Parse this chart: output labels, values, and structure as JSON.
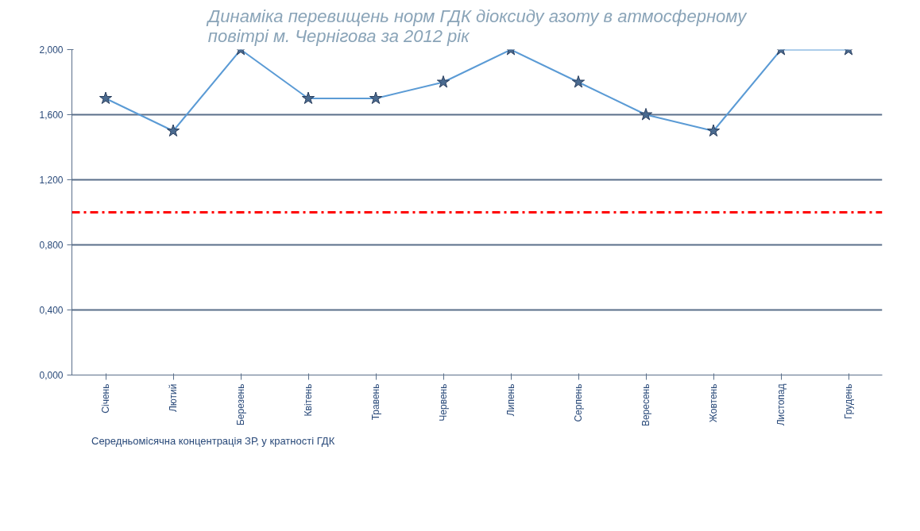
{
  "chart_data": {
    "type": "line",
    "title": "Динаміка перевищень норм ГДК діоксиду азоту в атмосферному повітрі м. Чернігова за 2012 рік",
    "categories": [
      "Січень",
      "Лютий",
      "Березень",
      "Квітень",
      "Травень",
      "Червень",
      "Липень",
      "Серпень",
      "Вересень",
      "Жовтень",
      "Листопад",
      "Грудень"
    ],
    "series": [
      {
        "name": "Середньомісячна концентрація ЗР, у кратності ГДК",
        "color": "#5b9bd5",
        "values": [
          1.7,
          1.5,
          2.0,
          1.7,
          1.7,
          1.8,
          2.0,
          1.8,
          1.6,
          1.5,
          2.0,
          2.0
        ]
      }
    ],
    "ylim": [
      0,
      2
    ],
    "yticks": [
      {
        "value": 0,
        "label": "0,000"
      },
      {
        "value": 0.4,
        "label": "0,400"
      },
      {
        "value": 0.8,
        "label": "0,800"
      },
      {
        "value": 1.2,
        "label": "1,200"
      },
      {
        "value": 1.6,
        "label": "1,600"
      },
      {
        "value": 2.0,
        "label": "2,000"
      }
    ],
    "ref_lines": [
      {
        "axis": "y",
        "value": 1.0,
        "color": "#ff0000",
        "line_style": "dashdot"
      }
    ],
    "grid": "y",
    "legend": "bottom",
    "marker": "star",
    "line_style": "solid"
  }
}
